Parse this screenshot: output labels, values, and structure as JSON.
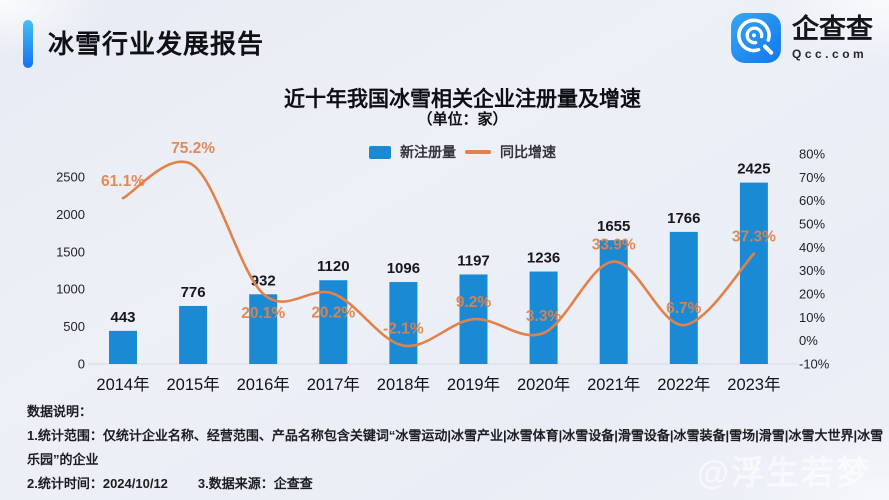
{
  "header": {
    "title": "冰雪行业发展报告",
    "logo": {
      "name": "企查查",
      "domain": "Qcc.com"
    }
  },
  "chart_data": {
    "type": "bar+line",
    "title": "近十年我国冰雪相关企业注册量及增速",
    "subtitle": "（单位：家）",
    "categories": [
      "2014年",
      "2015年",
      "2016年",
      "2017年",
      "2018年",
      "2019年",
      "2020年",
      "2021年",
      "2022年",
      "2023年"
    ],
    "series": [
      {
        "name": "新注册量",
        "type": "bar",
        "axis": "left",
        "color": "#1b8ad5",
        "values": [
          443,
          776,
          932,
          1120,
          1096,
          1197,
          1236,
          1655,
          1766,
          2425
        ]
      },
      {
        "name": "同比增速",
        "type": "line",
        "axis": "right",
        "color": "#e2824a",
        "unit": "%",
        "values": [
          61.1,
          75.2,
          20.1,
          20.2,
          -2.1,
          9.2,
          3.3,
          33.9,
          6.7,
          37.3
        ],
        "labels": [
          "61.1%",
          "75.2%",
          "20.1%",
          "20.2%",
          "-2.1%",
          "9.2%",
          "3.3%",
          "33.9%",
          "6.7%",
          "37.3%"
        ],
        "labels_below_indices": [
          2,
          3
        ]
      }
    ],
    "left_axis": {
      "ticks": [
        0,
        500,
        1000,
        1500,
        2000,
        2500
      ],
      "range": [
        0,
        2500
      ]
    },
    "right_axis": {
      "ticks": [
        80,
        70,
        60,
        50,
        40,
        30,
        20,
        10,
        0,
        -10
      ],
      "tick_labels": [
        "80%",
        "70%",
        "60%",
        "50%",
        "40%",
        "30%",
        "20%",
        "10%",
        "0%",
        "-10%"
      ],
      "range": [
        -10,
        80
      ]
    },
    "legend_position": "top-center",
    "grid": false
  },
  "notes": {
    "heading": "数据说明：",
    "line1": "1.统计范围：仅统计企业名称、经营范围、产品名称包含关键词“冰雪运动|冰雪产业|冰雪体育|冰雪设备|滑雪设备|冰雪装备|雪场|滑雪|冰雪大世界|冰雪乐园”的企业",
    "line2_time": "2.统计时间：2024/10/12",
    "line2_source": "3.数据来源：企查查"
  },
  "watermark": "@浮生若梦",
  "colors": {
    "bar": "#1b8ad5",
    "line": "#e2824a",
    "accent_top": "#45c0f5",
    "accent_bottom": "#1473f0",
    "logo_top": "#35a7f2",
    "logo_bottom": "#1277ef",
    "axis_text": "#222428",
    "baseline": "#d7dbe3"
  }
}
